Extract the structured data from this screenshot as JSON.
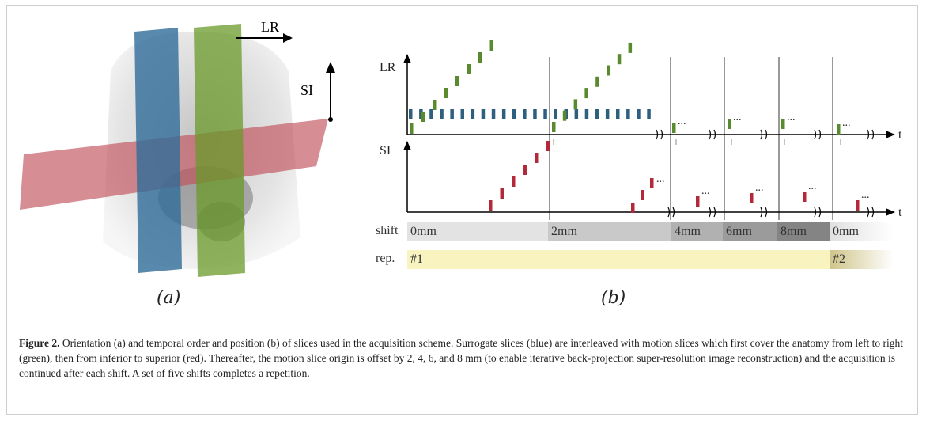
{
  "panel_a": {
    "axis_lr": "LR",
    "axis_si": "SI",
    "sublabel": "(a)"
  },
  "panel_b": {
    "top_axis_label": "LR",
    "bottom_axis_label": "SI",
    "time_label_top": "t",
    "time_label_bottom": "t",
    "ellipsis": "...",
    "sublabel": "(b)",
    "colors": {
      "green": "#5a8a2e",
      "blue": "#2d5f7f",
      "red": "#b3283a"
    }
  },
  "shift_bar": {
    "label": "shift",
    "segments": [
      "0mm",
      "2mm",
      "4mm",
      "6mm",
      "8mm",
      "0mm"
    ]
  },
  "rep_bar": {
    "label": "rep.",
    "segments": [
      "#1",
      "#2"
    ]
  },
  "caption": {
    "figure_label": "Figure 2.",
    "text": " Orientation (a) and temporal order and position (b) of slices used in the acquisition scheme. Surrogate slices (blue) are interleaved with motion slices which first cover the anatomy from left to right (green), then from inferior to superior (red). Thereafter, the motion slice origin is offset by 2, 4, 6, and 8 mm (to enable iterative back-projection super-resolution image reconstruction) and the acquisition is continued after each shift. A set of five shifts completes a repetition."
  }
}
